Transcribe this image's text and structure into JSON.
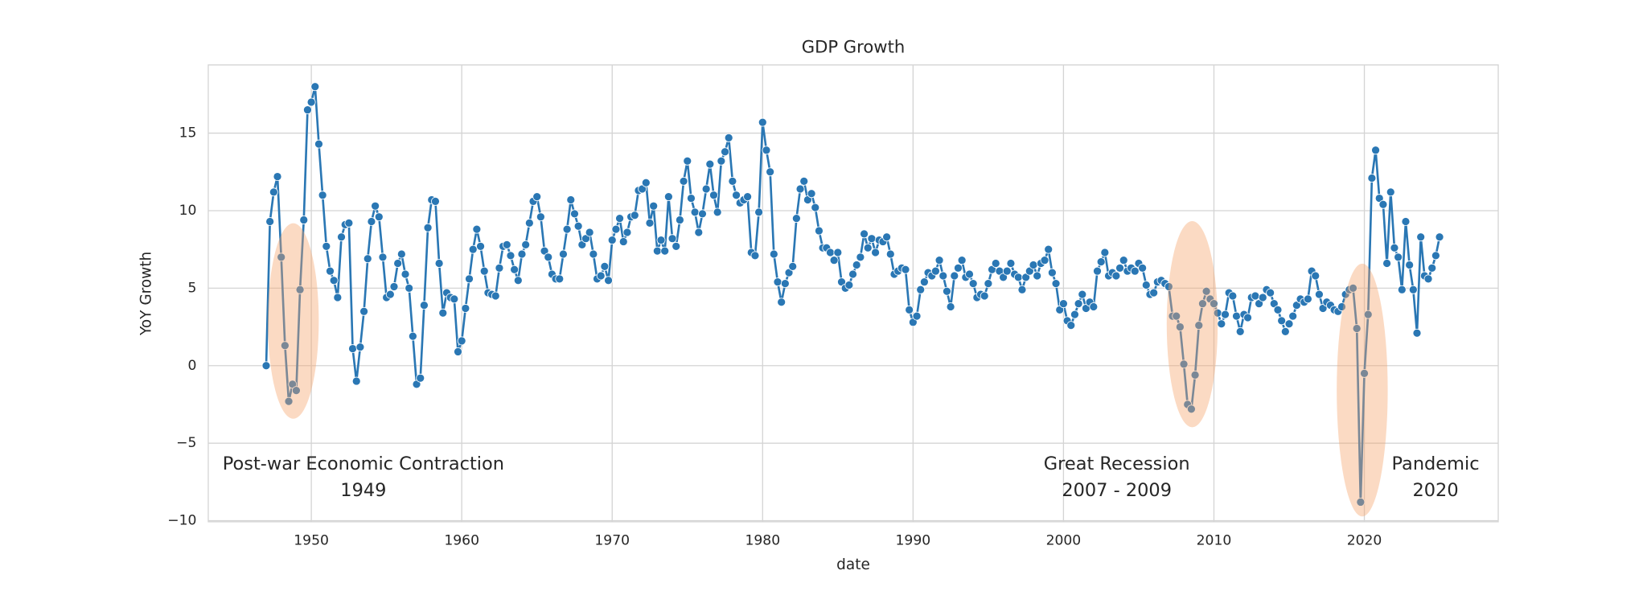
{
  "chart_data": {
    "type": "line",
    "title": "GDP Growth",
    "x_label": "date",
    "y_label": "YoY Growth",
    "color": "#2a77b4",
    "grid": true,
    "xlim": [
      1943.15,
      2028.9
    ],
    "xticks": [
      1950,
      1960,
      1970,
      1980,
      1990,
      2000,
      2010,
      2020
    ],
    "ylim": [
      -10.07,
      19.4
    ],
    "yticks": [
      {
        "value": -10,
        "label": "−10"
      },
      {
        "value": -5,
        "label": "−5"
      },
      0,
      5,
      10,
      15
    ],
    "annotations": [
      [
        "Post-war Economic Contraction",
        "1949"
      ],
      [
        "Great Recession",
        "2007 - 2009"
      ],
      [
        "Pandemic",
        "2020"
      ]
    ],
    "x": [
      1947,
      1947.25,
      1947.5,
      1947.75,
      1948,
      1948.25,
      1948.5,
      1948.75,
      1949,
      1949.25,
      1949.5,
      1949.75,
      1950,
      1950.25,
      1950.5,
      1950.75,
      1951,
      1951.25,
      1951.5,
      1951.75,
      1952,
      1952.25,
      1952.5,
      1952.75,
      1953,
      1953.25,
      1953.5,
      1953.75,
      1954,
      1954.25,
      1954.5,
      1954.75,
      1955,
      1955.25,
      1955.5,
      1955.75,
      1956,
      1956.25,
      1956.5,
      1956.75,
      1957,
      1957.25,
      1957.5,
      1957.75,
      1958,
      1958.25,
      1958.5,
      1958.75,
      1959,
      1959.25,
      1959.5,
      1959.75,
      1960,
      1960.25,
      1960.5,
      1960.75,
      1961,
      1961.25,
      1961.5,
      1961.75,
      1962,
      1962.25,
      1962.5,
      1962.75,
      1963,
      1963.25,
      1963.5,
      1963.75,
      1964,
      1964.25,
      1964.5,
      1964.75,
      1965,
      1965.25,
      1965.5,
      1965.75,
      1966,
      1966.25,
      1966.5,
      1966.75,
      1967,
      1967.25,
      1967.5,
      1967.75,
      1968,
      1968.25,
      1968.5,
      1968.75,
      1969,
      1969.25,
      1969.5,
      1969.75,
      1970,
      1970.25,
      1970.5,
      1970.75,
      1971,
      1971.25,
      1971.5,
      1971.75,
      1972,
      1972.25,
      1972.5,
      1972.75,
      1973,
      1973.25,
      1973.5,
      1973.75,
      1974,
      1974.25,
      1974.5,
      1974.75,
      1975,
      1975.25,
      1975.5,
      1975.75,
      1976,
      1976.25,
      1976.5,
      1976.75,
      1977,
      1977.25,
      1977.5,
      1977.75,
      1978,
      1978.25,
      1978.5,
      1978.75,
      1979,
      1979.25,
      1979.5,
      1979.75,
      1980,
      1980.25,
      1980.5,
      1980.75,
      1981,
      1981.25,
      1981.5,
      1981.75,
      1982,
      1982.25,
      1982.5,
      1982.75,
      1983,
      1983.25,
      1983.5,
      1983.75,
      1984,
      1984.25,
      1984.5,
      1984.75,
      1985,
      1985.25,
      1985.5,
      1985.75,
      1986,
      1986.25,
      1986.5,
      1986.75,
      1987,
      1987.25,
      1987.5,
      1987.75,
      1988,
      1988.25,
      1988.5,
      1988.75,
      1989,
      1989.25,
      1989.5,
      1989.75,
      1990,
      1990.25,
      1990.5,
      1990.75,
      1991,
      1991.25,
      1991.5,
      1991.75,
      1992,
      1992.25,
      1992.5,
      1992.75,
      1993,
      1993.25,
      1993.5,
      1993.75,
      1994,
      1994.25,
      1994.5,
      1994.75,
      1995,
      1995.25,
      1995.5,
      1995.75,
      1996,
      1996.25,
      1996.5,
      1996.75,
      1997,
      1997.25,
      1997.5,
      1997.75,
      1998,
      1998.25,
      1998.5,
      1998.75,
      1999,
      1999.25,
      1999.5,
      1999.75,
      2000,
      2000.25,
      2000.5,
      2000.75,
      2001,
      2001.25,
      2001.5,
      2001.75,
      2002,
      2002.25,
      2002.5,
      2002.75,
      2003,
      2003.25,
      2003.5,
      2003.75,
      2004,
      2004.25,
      2004.5,
      2004.75,
      2005,
      2005.25,
      2005.5,
      2005.75,
      2006,
      2006.25,
      2006.5,
      2006.75,
      2007,
      2007.25,
      2007.5,
      2007.75,
      2008,
      2008.25,
      2008.5,
      2008.75,
      2009,
      2009.25,
      2009.5,
      2009.75,
      2010,
      2010.25,
      2010.5,
      2010.75,
      2011,
      2011.25,
      2011.5,
      2011.75,
      2012,
      2012.25,
      2012.5,
      2012.75,
      2013,
      2013.25,
      2013.5,
      2013.75,
      2014,
      2014.25,
      2014.5,
      2014.75,
      2015,
      2015.25,
      2015.5,
      2015.75,
      2016,
      2016.25,
      2016.5,
      2016.75,
      2017,
      2017.25,
      2017.5,
      2017.75,
      2018,
      2018.25,
      2018.5,
      2018.75,
      2019,
      2019.25,
      2019.5,
      2019.75,
      2020,
      2020.25,
      2020.5,
      2020.75,
      2021,
      2021.25,
      2021.5,
      2021.75,
      2022,
      2022.25,
      2022.5,
      2022.75,
      2023,
      2023.25,
      2023.5,
      2023.75,
      2024,
      2024.25,
      2024.5,
      2024.75,
      2025
    ],
    "values": [
      0,
      9.3,
      11.2,
      12.2,
      7.0,
      1.3,
      -2.3,
      -1.2,
      -1.6,
      4.9,
      9.4,
      16.5,
      17.0,
      18.0,
      14.3,
      11.0,
      7.7,
      6.1,
      5.5,
      4.4,
      8.3,
      9.1,
      9.2,
      1.1,
      -1.0,
      1.2,
      3.5,
      6.9,
      9.3,
      10.3,
      9.6,
      7.0,
      4.4,
      4.6,
      5.1,
      6.6,
      7.2,
      5.9,
      5.0,
      1.9,
      -1.2,
      -0.8,
      3.9,
      8.9,
      10.7,
      10.6,
      6.6,
      3.4,
      4.7,
      4.4,
      4.3,
      0.9,
      1.6,
      3.7,
      5.6,
      7.5,
      8.8,
      7.7,
      6.1,
      4.7,
      4.6,
      4.5,
      6.3,
      7.7,
      7.8,
      7.1,
      6.2,
      5.5,
      7.2,
      7.8,
      9.2,
      10.6,
      10.9,
      9.6,
      7.4,
      7.0,
      5.9,
      5.6,
      5.6,
      7.2,
      8.8,
      10.7,
      9.8,
      9.0,
      7.8,
      8.2,
      8.6,
      7.2,
      5.6,
      5.8,
      6.4,
      5.5,
      8.1,
      8.8,
      9.5,
      8.0,
      8.6,
      9.6,
      9.7,
      11.3,
      11.4,
      11.8,
      9.2,
      10.3,
      7.4,
      8.1,
      7.4,
      10.9,
      8.2,
      7.7,
      9.4,
      11.9,
      13.2,
      10.8,
      9.9,
      8.6,
      9.8,
      11.4,
      13.0,
      11.0,
      9.9,
      13.2,
      13.8,
      14.7,
      11.9,
      11.0,
      10.5,
      10.7,
      10.9,
      7.3,
      7.1,
      9.9,
      15.7,
      13.9,
      12.5,
      7.2,
      5.4,
      4.1,
      5.3,
      6.0,
      6.4,
      9.5,
      11.4,
      11.9,
      10.7,
      11.1,
      10.2,
      8.7,
      7.6,
      7.6,
      7.3,
      6.8,
      7.3,
      5.4,
      5.0,
      5.2,
      5.9,
      6.5,
      7.0,
      8.5,
      7.6,
      8.2,
      7.3,
      8.1,
      8.0,
      8.3,
      7.2,
      5.9,
      6.1,
      6.3,
      6.2,
      3.6,
      2.8,
      3.2,
      4.9,
      5.4,
      6.0,
      5.8,
      6.1,
      6.8,
      5.8,
      4.8,
      3.8,
      5.8,
      6.3,
      6.8,
      5.7,
      5.9,
      5.3,
      4.4,
      4.6,
      4.5,
      5.3,
      6.2,
      6.6,
      6.1,
      5.7,
      6.1,
      6.6,
      5.9,
      5.7,
      4.9,
      5.7,
      6.1,
      6.5,
      5.8,
      6.6,
      6.8,
      7.5,
      6.0,
      5.3,
      3.6,
      4.0,
      2.9,
      2.6,
      3.3,
      4.0,
      4.6,
      3.7,
      4.1,
      3.8,
      6.1,
      6.7,
      7.3,
      5.8,
      6.0,
      5.8,
      6.3,
      6.8,
      6.1,
      6.3,
      6.1,
      6.6,
      6.3,
      5.2,
      4.6,
      4.7,
      5.4,
      5.5,
      5.3,
      5.1,
      3.2,
      3.2,
      2.5,
      0.1,
      -2.5,
      -2.8,
      -0.6,
      2.6,
      4.0,
      4.8,
      4.3,
      4.0,
      3.4,
      2.7,
      3.3,
      4.7,
      4.5,
      3.2,
      2.2,
      3.3,
      3.1,
      4.4,
      4.5,
      4.0,
      4.4,
      4.9,
      4.7,
      4.0,
      3.6,
      2.9,
      2.2,
      2.7,
      3.2,
      3.9,
      4.3,
      4.1,
      4.3,
      6.1,
      5.8,
      4.6,
      3.7,
      4.1,
      3.9,
      3.6,
      3.5,
      3.8,
      4.6,
      4.9,
      5.0,
      2.4,
      -8.8,
      -0.5,
      3.3,
      12.1,
      13.9,
      10.8,
      10.4,
      6.6,
      11.2,
      7.6,
      7.0,
      4.9,
      9.3,
      6.5,
      4.9,
      2.1,
      8.3,
      5.8,
      5.6,
      6.3,
      7.1,
      8.3
    ]
  }
}
